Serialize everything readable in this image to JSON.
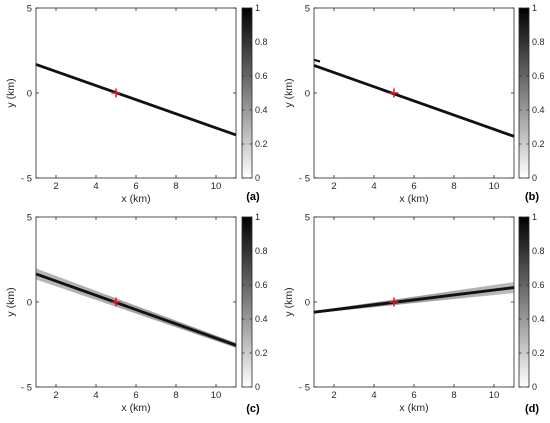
{
  "chart_data": [
    {
      "type": "line",
      "panel_label": "(a)",
      "xlabel": "x (km)",
      "ylabel": "y (km)",
      "xlim": [
        1,
        11
      ],
      "ylim": [
        -5,
        5
      ],
      "xticks": [
        2,
        4,
        6,
        8,
        10
      ],
      "yticks": [
        -5,
        0,
        5
      ],
      "ytick_labels": [
        "- 5",
        "0",
        "5"
      ],
      "grid": false,
      "marker": {
        "x": 5,
        "y": 0,
        "color": "#e8141a",
        "symbol": "+"
      },
      "band": {
        "x": [
          1,
          11
        ],
        "y": [
          1.68,
          -2.47
        ],
        "spread_start": 0.0,
        "spread_end": 0.0
      },
      "extra_segments": [],
      "colorbar": {
        "min": 0,
        "max": 1,
        "ticks": [
          0,
          0.2,
          0.4,
          0.6,
          0.8,
          1
        ],
        "tick_labels": [
          "0",
          "0.2",
          "0.4",
          "0.6",
          "0.8",
          "1"
        ],
        "colormap": "gray-reversed"
      }
    },
    {
      "type": "line",
      "panel_label": "(b)",
      "xlabel": "x (km)",
      "ylabel": "y (km)",
      "xlim": [
        1,
        11
      ],
      "ylim": [
        -5,
        5
      ],
      "xticks": [
        2,
        4,
        6,
        8,
        10
      ],
      "yticks": [
        -5,
        0,
        5
      ],
      "ytick_labels": [
        "- 5",
        "0",
        "5"
      ],
      "grid": false,
      "marker": {
        "x": 5,
        "y": 0,
        "color": "#e8141a",
        "symbol": "+"
      },
      "band": {
        "x": [
          1,
          11
        ],
        "y": [
          1.62,
          -2.55
        ],
        "spread_start": 0.05,
        "spread_end": 0.05
      },
      "extra_segments": [
        {
          "x": [
            1,
            1.3
          ],
          "y": [
            1.95,
            1.85
          ]
        }
      ],
      "colorbar": {
        "min": 0,
        "max": 1,
        "ticks": [
          0,
          0.2,
          0.4,
          0.6,
          0.8,
          1
        ],
        "tick_labels": [
          "0",
          "0.2",
          "0.4",
          "0.6",
          "0.8",
          "1"
        ],
        "colormap": "gray-reversed"
      }
    },
    {
      "type": "line",
      "panel_label": "(c)",
      "xlabel": "x (km)",
      "ylabel": "y (km)",
      "xlim": [
        1,
        11
      ],
      "ylim": [
        -5,
        5
      ],
      "xticks": [
        2,
        4,
        6,
        8,
        10
      ],
      "yticks": [
        -5,
        0,
        5
      ],
      "ytick_labels": [
        "- 5",
        "0",
        "5"
      ],
      "grid": false,
      "marker": {
        "x": 5,
        "y": 0,
        "color": "#e8141a",
        "symbol": "+"
      },
      "band": {
        "x": [
          1,
          11
        ],
        "y": [
          1.65,
          -2.55
        ],
        "spread_start": 0.3,
        "spread_end": 0.12
      },
      "extra_segments": [],
      "colorbar": {
        "min": 0,
        "max": 1,
        "ticks": [
          0,
          0.2,
          0.4,
          0.6,
          0.8,
          1
        ],
        "tick_labels": [
          "0",
          "0.2",
          "0.4",
          "0.6",
          "0.8",
          "1"
        ],
        "colormap": "gray-reversed"
      }
    },
    {
      "type": "line",
      "panel_label": "(d)",
      "xlabel": "x (km)",
      "ylabel": "y (km)",
      "xlim": [
        1,
        11
      ],
      "ylim": [
        -5,
        5
      ],
      "xticks": [
        2,
        4,
        6,
        8,
        10
      ],
      "yticks": [
        -5,
        0,
        5
      ],
      "ytick_labels": [
        "- 5",
        "0",
        "5"
      ],
      "grid": false,
      "marker": {
        "x": 5,
        "y": 0,
        "color": "#e8141a",
        "symbol": "+"
      },
      "band": {
        "x": [
          1,
          11
        ],
        "y": [
          -0.6,
          0.85
        ],
        "spread_start": 0.04,
        "spread_end": 0.3
      },
      "extra_segments": [],
      "colorbar": {
        "min": 0,
        "max": 1,
        "ticks": [
          0,
          0.2,
          0.4,
          0.6,
          0.8,
          1
        ],
        "tick_labels": [
          "0",
          "0.2",
          "0.4",
          "0.6",
          "0.8",
          "1"
        ],
        "colormap": "gray-reversed"
      }
    }
  ]
}
